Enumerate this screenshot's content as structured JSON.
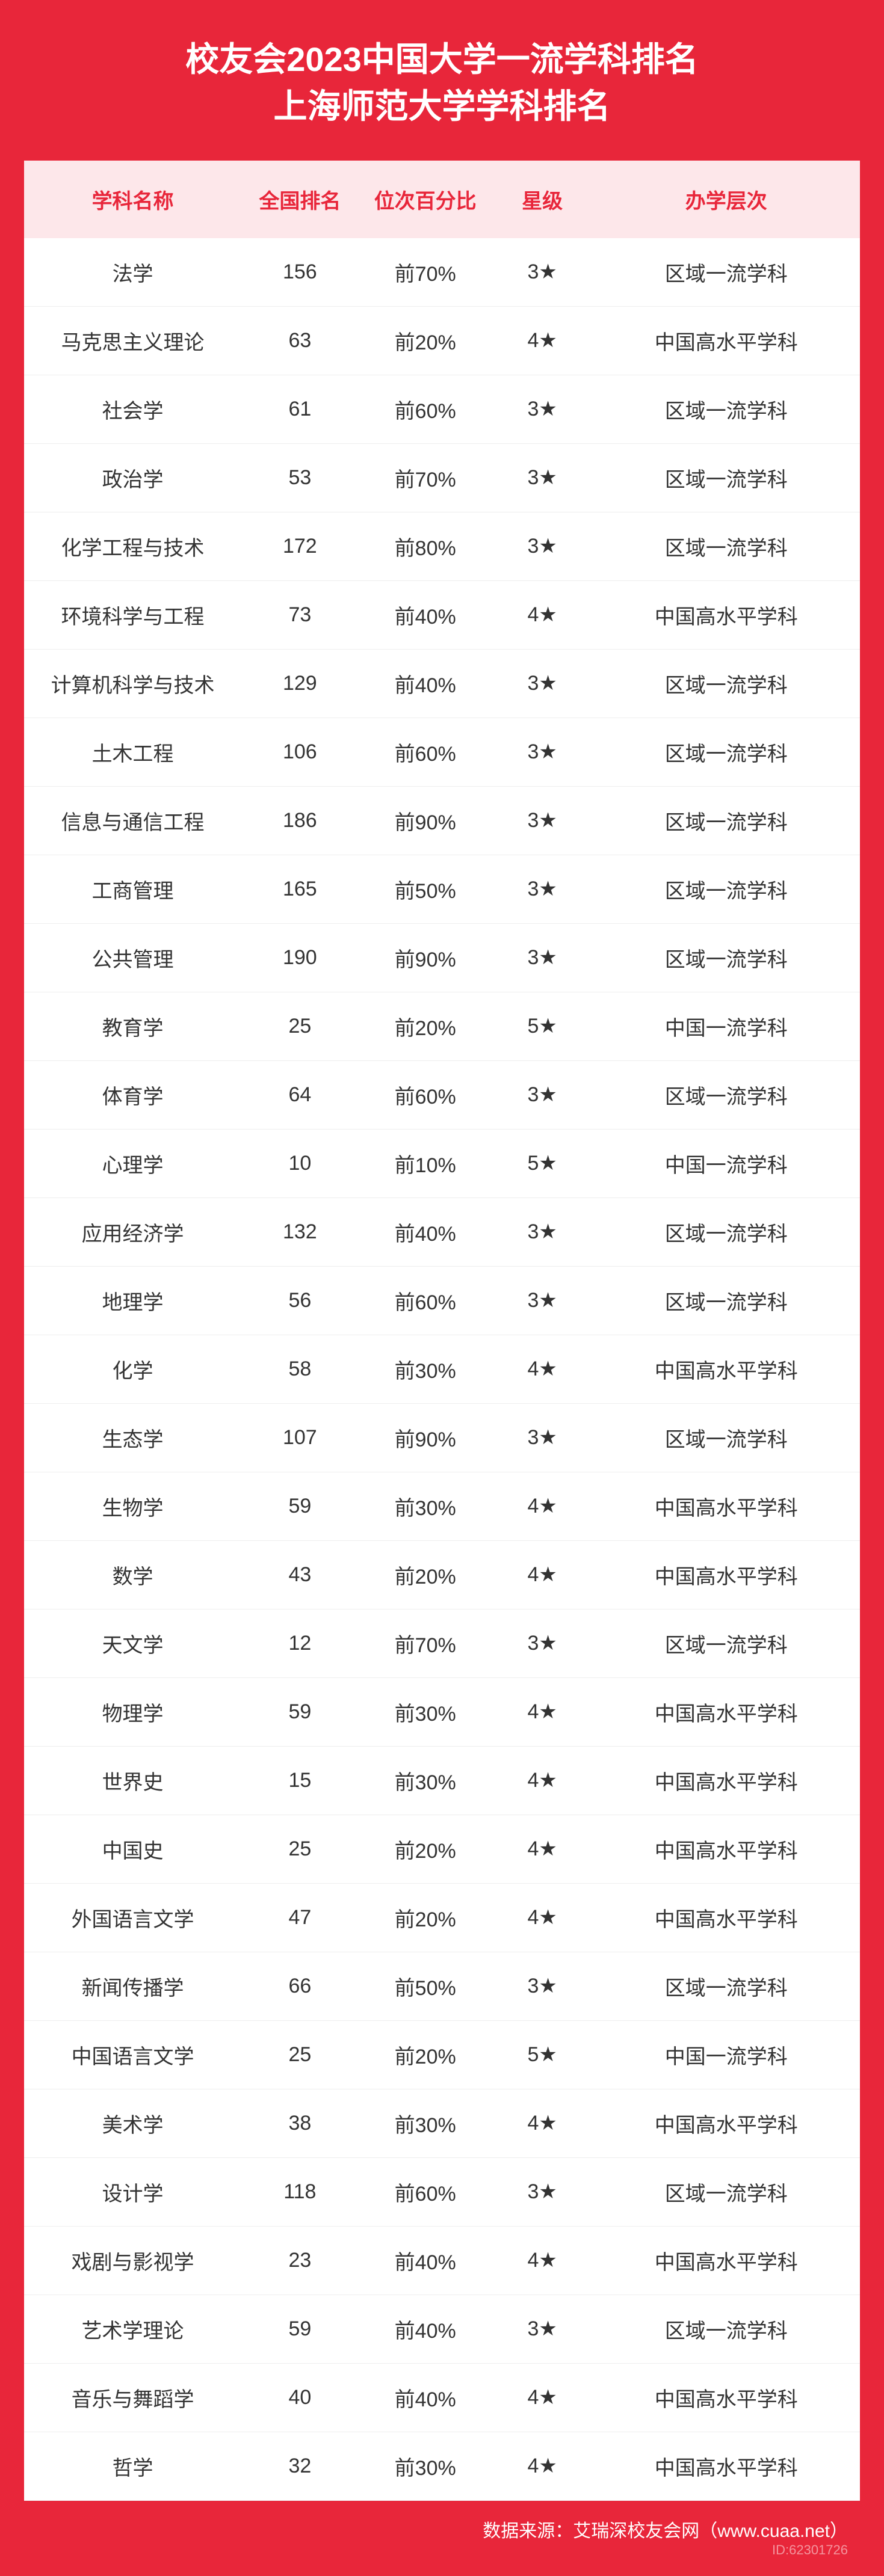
{
  "title_line1": "校友会2023中国大学一流学科排名",
  "title_line2": "上海师范大学学科排名",
  "columns": {
    "name": "学科名称",
    "rank": "全国排名",
    "pct": "位次百分比",
    "star": "星级",
    "level": "办学层次"
  },
  "rows": [
    {
      "name": "法学",
      "rank": "156",
      "pct": "前70%",
      "star": "3★",
      "level": "区域一流学科"
    },
    {
      "name": "马克思主义理论",
      "rank": "63",
      "pct": "前20%",
      "star": "4★",
      "level": "中国高水平学科"
    },
    {
      "name": "社会学",
      "rank": "61",
      "pct": "前60%",
      "star": "3★",
      "level": "区域一流学科"
    },
    {
      "name": "政治学",
      "rank": "53",
      "pct": "前70%",
      "star": "3★",
      "level": "区域一流学科"
    },
    {
      "name": "化学工程与技术",
      "rank": "172",
      "pct": "前80%",
      "star": "3★",
      "level": "区域一流学科"
    },
    {
      "name": "环境科学与工程",
      "rank": "73",
      "pct": "前40%",
      "star": "4★",
      "level": "中国高水平学科"
    },
    {
      "name": "计算机科学与技术",
      "rank": "129",
      "pct": "前40%",
      "star": "3★",
      "level": "区域一流学科"
    },
    {
      "name": "土木工程",
      "rank": "106",
      "pct": "前60%",
      "star": "3★",
      "level": "区域一流学科"
    },
    {
      "name": "信息与通信工程",
      "rank": "186",
      "pct": "前90%",
      "star": "3★",
      "level": "区域一流学科"
    },
    {
      "name": "工商管理",
      "rank": "165",
      "pct": "前50%",
      "star": "3★",
      "level": "区域一流学科"
    },
    {
      "name": "公共管理",
      "rank": "190",
      "pct": "前90%",
      "star": "3★",
      "level": "区域一流学科"
    },
    {
      "name": "教育学",
      "rank": "25",
      "pct": "前20%",
      "star": "5★",
      "level": "中国一流学科"
    },
    {
      "name": "体育学",
      "rank": "64",
      "pct": "前60%",
      "star": "3★",
      "level": "区域一流学科"
    },
    {
      "name": "心理学",
      "rank": "10",
      "pct": "前10%",
      "star": "5★",
      "level": "中国一流学科"
    },
    {
      "name": "应用经济学",
      "rank": "132",
      "pct": "前40%",
      "star": "3★",
      "level": "区域一流学科"
    },
    {
      "name": "地理学",
      "rank": "56",
      "pct": "前60%",
      "star": "3★",
      "level": "区域一流学科"
    },
    {
      "name": "化学",
      "rank": "58",
      "pct": "前30%",
      "star": "4★",
      "level": "中国高水平学科"
    },
    {
      "name": "生态学",
      "rank": "107",
      "pct": "前90%",
      "star": "3★",
      "level": "区域一流学科"
    },
    {
      "name": "生物学",
      "rank": "59",
      "pct": "前30%",
      "star": "4★",
      "level": "中国高水平学科"
    },
    {
      "name": "数学",
      "rank": "43",
      "pct": "前20%",
      "star": "4★",
      "level": "中国高水平学科"
    },
    {
      "name": "天文学",
      "rank": "12",
      "pct": "前70%",
      "star": "3★",
      "level": "区域一流学科"
    },
    {
      "name": "物理学",
      "rank": "59",
      "pct": "前30%",
      "star": "4★",
      "level": "中国高水平学科"
    },
    {
      "name": "世界史",
      "rank": "15",
      "pct": "前30%",
      "star": "4★",
      "level": "中国高水平学科"
    },
    {
      "name": "中国史",
      "rank": "25",
      "pct": "前20%",
      "star": "4★",
      "level": "中国高水平学科"
    },
    {
      "name": "外国语言文学",
      "rank": "47",
      "pct": "前20%",
      "star": "4★",
      "level": "中国高水平学科"
    },
    {
      "name": "新闻传播学",
      "rank": "66",
      "pct": "前50%",
      "star": "3★",
      "level": "区域一流学科"
    },
    {
      "name": "中国语言文学",
      "rank": "25",
      "pct": "前20%",
      "star": "5★",
      "level": "中国一流学科"
    },
    {
      "name": "美术学",
      "rank": "38",
      "pct": "前30%",
      "star": "4★",
      "level": "中国高水平学科"
    },
    {
      "name": "设计学",
      "rank": "118",
      "pct": "前60%",
      "star": "3★",
      "level": "区域一流学科"
    },
    {
      "name": "戏剧与影视学",
      "rank": "23",
      "pct": "前40%",
      "star": "4★",
      "level": "中国高水平学科"
    },
    {
      "name": "艺术学理论",
      "rank": "59",
      "pct": "前40%",
      "star": "3★",
      "level": "区域一流学科"
    },
    {
      "name": "音乐与舞蹈学",
      "rank": "40",
      "pct": "前40%",
      "star": "4★",
      "level": "中国高水平学科"
    },
    {
      "name": "哲学",
      "rank": "32",
      "pct": "前30%",
      "star": "4★",
      "level": "中国高水平学科"
    }
  ],
  "footer": "数据来源：艾瑞深校友会网（www.cuaa.net）",
  "watermark": "ID:62301726",
  "colors": {
    "brand_red": "#e8263a",
    "header_bg": "#fde7ea",
    "text": "#333333",
    "row_border": "#eeeeee",
    "white": "#ffffff"
  },
  "typography": {
    "title_fontsize": 56,
    "header_fontsize": 34,
    "cell_fontsize": 34,
    "footer_fontsize": 30
  }
}
